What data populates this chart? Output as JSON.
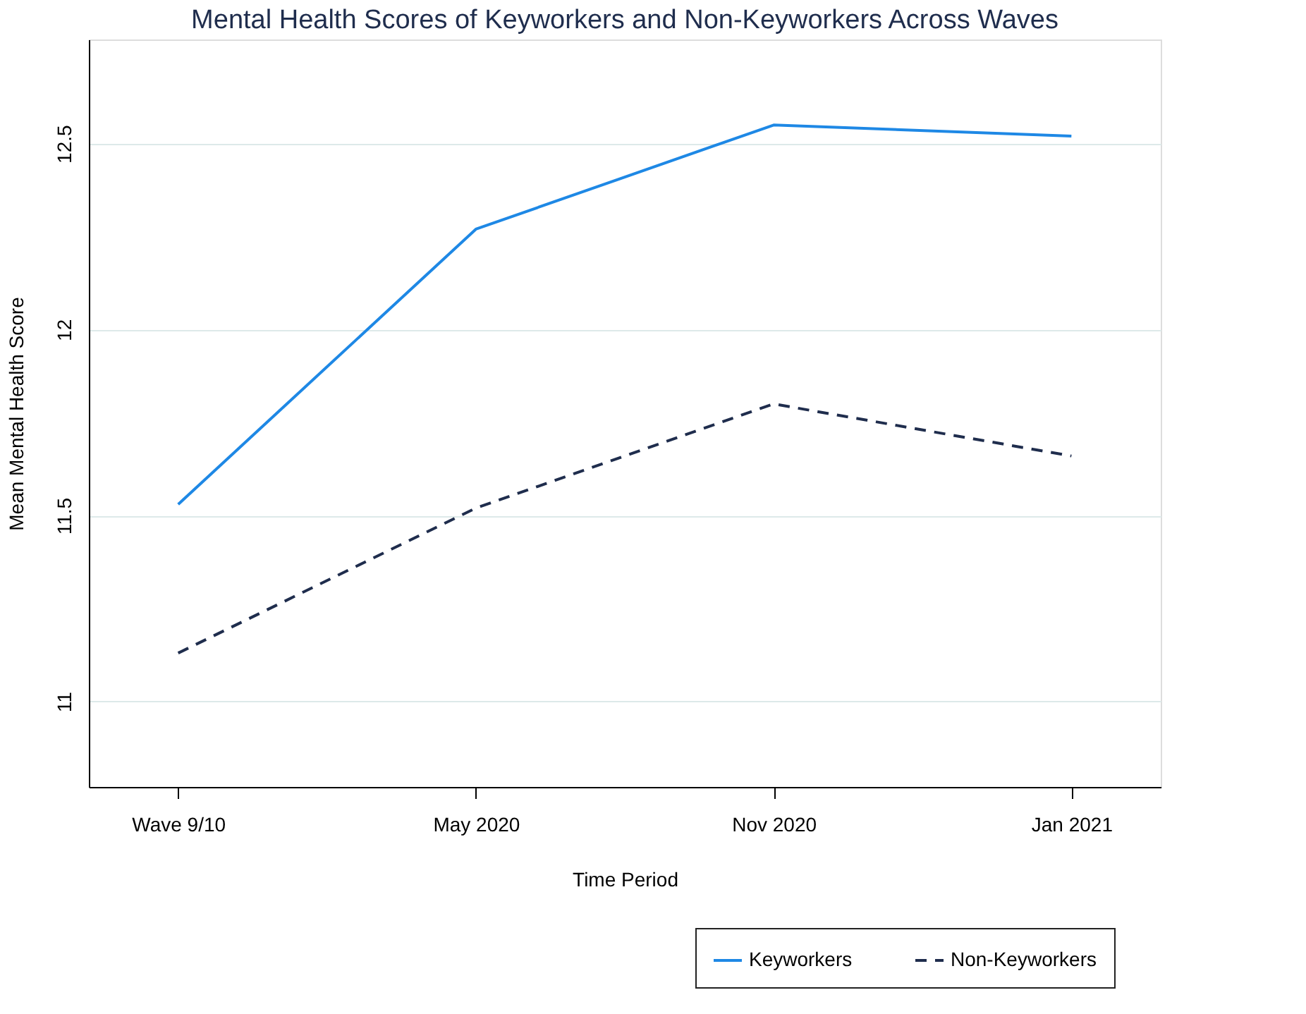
{
  "chart_data": {
    "type": "line",
    "title": "Mental Health Scores of Keyworkers and Non-Keyworkers Across Waves",
    "xlabel": "Time Period",
    "ylabel": "Mean Mental Health Score",
    "categories": [
      "Wave 9/10",
      "May 2020",
      "Nov 2020",
      "Jan 2021"
    ],
    "series": [
      {
        "name": "Keyworkers",
        "color": "#1e88e5",
        "line_style": "solid",
        "values": [
          11.53,
          12.27,
          12.55,
          12.52
        ]
      },
      {
        "name": "Non-Keyworkers",
        "color": "#1f2d4d",
        "line_style": "dashed",
        "values": [
          11.13,
          11.52,
          11.8,
          11.66
        ]
      }
    ],
    "ylim": [
      10.77,
      12.78
    ],
    "yticks": [
      11,
      11.5,
      12,
      12.5
    ],
    "grid": "y",
    "legend": "bottom right",
    "marker": "none"
  }
}
